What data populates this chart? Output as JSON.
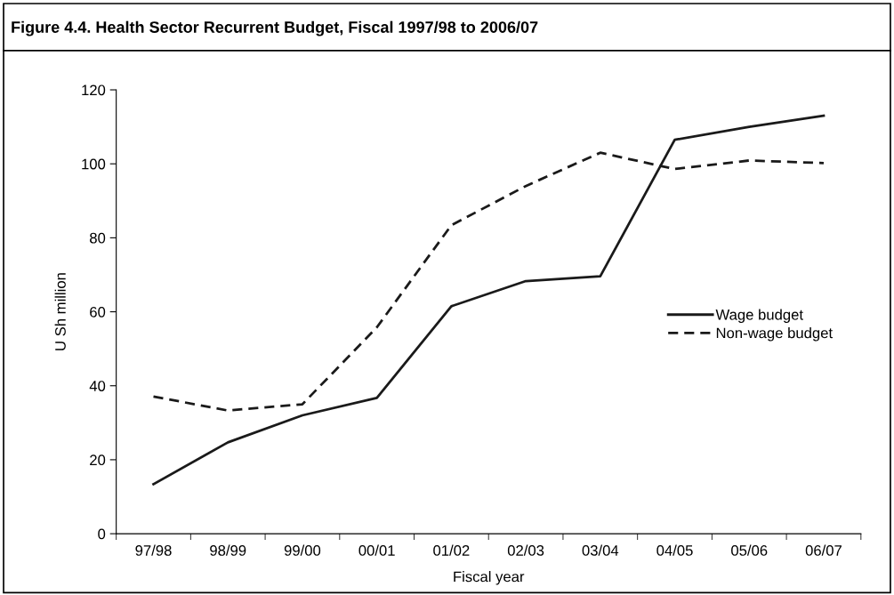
{
  "chart_data": {
    "type": "line",
    "title": "Figure 4.4. Health Sector Recurrent Budget, Fiscal 1997/98 to 2006/07",
    "xlabel": "Fiscal year",
    "ylabel": "U Sh million",
    "categories": [
      "97/98",
      "98/99",
      "99/00",
      "00/01",
      "01/02",
      "02/03",
      "03/04",
      "04/05",
      "05/06",
      "06/07"
    ],
    "series": [
      {
        "name": "Wage budget",
        "color": "#1a1a1a",
        "line_style": "solid",
        "values": [
          13.4,
          24.7,
          32.0,
          36.7,
          61.5,
          68.3,
          69.6,
          106.5,
          110,
          113
        ]
      },
      {
        "name": "Non-wage budget",
        "color": "#1a1a1a",
        "line_style": "dashed",
        "values": [
          37.1,
          33.3,
          35.0,
          55.8,
          83.4,
          94.0,
          103.0,
          98.6,
          100.9,
          100.2
        ]
      }
    ],
    "ylim": [
      0,
      120
    ],
    "yticks": [
      0,
      20,
      40,
      60,
      80,
      100,
      120
    ],
    "grid": false,
    "legend": "right",
    "marker": "none"
  }
}
